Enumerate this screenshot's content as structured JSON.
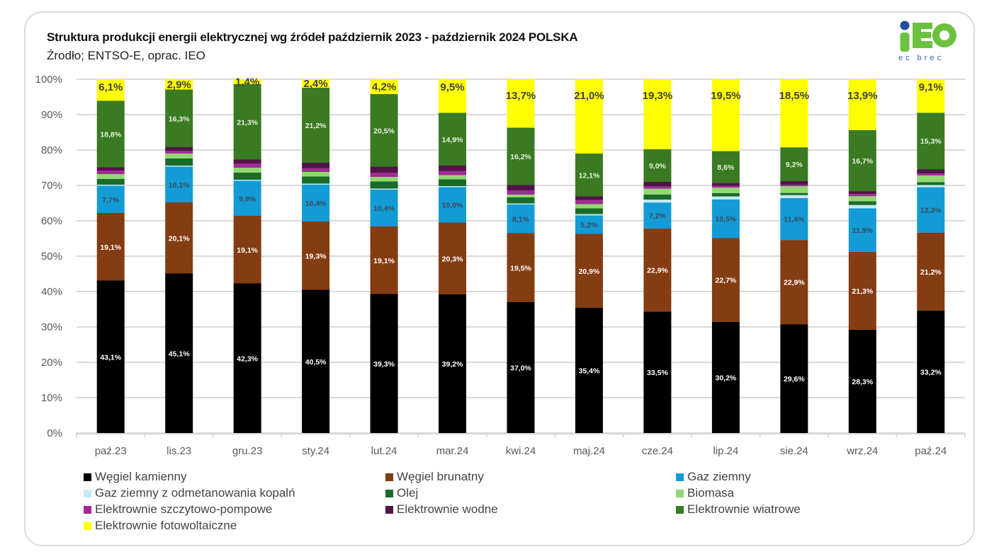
{
  "header": {
    "title": "Struktura produkcji energii elektrycznej wg źródeł październik 2023 - październik 2024 POLSKA",
    "subtitle": "Źrodło; ENTSO-E, oprac. IEO",
    "logo_main": "IEO",
    "logo_sub": "ec brec"
  },
  "chart_data": {
    "type": "bar",
    "stacked": "percent",
    "title": "Struktura produkcji energii elektrycznej wg źródeł październik 2023 - październik 2024 POLSKA",
    "subtitle": "Źrodło; ENTSO-E, oprac. IEO",
    "xlabel": "",
    "ylabel": "",
    "ylim": [
      0,
      100
    ],
    "yticks": [
      "0%",
      "10%",
      "20%",
      "30%",
      "40%",
      "50%",
      "60%",
      "70%",
      "80%",
      "90%",
      "100%"
    ],
    "grid": true,
    "legend_position": "bottom",
    "categories": [
      "paź.23",
      "lis.23",
      "gru.23",
      "sty.24",
      "lut.24",
      "mar.24",
      "kwi.24",
      "maj.24",
      "cze.24",
      "lip.24",
      "sie.24",
      "wrz.24",
      "paź.24"
    ],
    "series": [
      {
        "name": "Węgiel kamienny",
        "color": "#000000",
        "label_color": "#ffffff",
        "labeled": true,
        "values": [
          43.1,
          45.1,
          42.3,
          40.5,
          39.3,
          39.2,
          37.0,
          35.4,
          33.5,
          30.2,
          29.6,
          28.3,
          33.2
        ]
      },
      {
        "name": "Węgiel brunatny",
        "color": "#843c12",
        "label_color": "#ffffff",
        "labeled": true,
        "values": [
          19.1,
          20.1,
          19.1,
          19.3,
          19.1,
          20.3,
          19.5,
          20.9,
          22.9,
          22.7,
          22.9,
          21.3,
          21.2
        ]
      },
      {
        "name": "Gaz ziemny",
        "color": "#139bd5",
        "label_color": "#3a4a5a",
        "labeled": true,
        "values": [
          7.7,
          10.1,
          9.9,
          10.4,
          10.4,
          10.0,
          8.1,
          5.2,
          7.2,
          10.5,
          11.4,
          11.9,
          12.3
        ]
      },
      {
        "name": "Gaz ziemny z odmetanowania kopalń",
        "color": "#c5e8f7",
        "labeled": false,
        "values": [
          0.3,
          0.3,
          0.3,
          0.3,
          0.3,
          0.3,
          0.3,
          0.4,
          0.8,
          0.8,
          0.8,
          0.9,
          0.6
        ]
      },
      {
        "name": "Olej",
        "color": "#1a6b27",
        "labeled": false,
        "values": [
          1.6,
          2.0,
          2.0,
          2.0,
          2.0,
          1.9,
          1.7,
          1.6,
          1.4,
          0.9,
          0.6,
          1.0,
          0.8
        ]
      },
      {
        "name": "Biomasa",
        "color": "#92d774",
        "labeled": false,
        "values": [
          1.4,
          1.4,
          1.4,
          1.3,
          1.3,
          1.2,
          0.8,
          1.2,
          1.6,
          1.5,
          1.8,
          1.4,
          1.8
        ]
      },
      {
        "name": "Elektrownie szczytowo-pompowe",
        "color": "#a12b96",
        "labeled": false,
        "values": [
          1.0,
          0.8,
          1.2,
          1.1,
          1.2,
          1.2,
          1.2,
          1.2,
          0.6,
          0.5,
          0.4,
          0.6,
          0.5
        ]
      },
      {
        "name": "Elektrownie wodne",
        "color": "#4f1547",
        "labeled": false,
        "values": [
          0.9,
          1.0,
          1.1,
          1.5,
          1.7,
          1.5,
          1.5,
          1.0,
          1.3,
          0.8,
          1.0,
          0.8,
          1.2
        ]
      },
      {
        "name": "Elektrownie wiatrowe",
        "color": "#3a7a22",
        "label_color": "#e8f0e0",
        "labeled": true,
        "values": [
          18.8,
          16.3,
          21.3,
          21.2,
          20.5,
          14.9,
          16.2,
          12.1,
          9.0,
          8.6,
          9.2,
          16.7,
          15.3
        ]
      },
      {
        "name": "Elektrownie fotowoltaiczne",
        "color": "#ffff00",
        "label_color": "#404040",
        "labeled": true,
        "values": [
          6.1,
          2.9,
          1.4,
          2.4,
          4.2,
          9.5,
          13.7,
          21.0,
          19.3,
          19.5,
          18.5,
          13.9,
          9.1
        ]
      }
    ],
    "labels": {
      "Węgiel kamienny": [
        "43,1%",
        "45,1%",
        "42,3%",
        "40,5%",
        "39,3%",
        "39,2%",
        "37,0%",
        "35,4%",
        "33,5%",
        "30,2%",
        "29,6%",
        "28,3%",
        "33,2%"
      ],
      "Węgiel brunatny": [
        "19,1%",
        "20,1%",
        "19,1%",
        "19,3%",
        "19,1%",
        "20,3%",
        "19,5%",
        "20,9%",
        "22,9%",
        "22,7%",
        "22,9%",
        "21,3%",
        "21,2%"
      ],
      "Gaz ziemny": [
        "7,7%",
        "10,1%",
        "9,9%",
        "10,4%",
        "10,4%",
        "10,0%",
        "8,1%",
        "5,2%",
        "7,2%",
        "10,5%",
        "11,4%",
        "11,9%",
        "12,3%"
      ],
      "Elektrownie wiatrowe": [
        "18,8%",
        "16,3%",
        "21,3%",
        "21,2%",
        "20,5%",
        "14,9%",
        "16,2%",
        "12,1%",
        "9,0%",
        "8,6%",
        "9,2%",
        "16,7%",
        "15,3%"
      ],
      "Elektrownie fotowoltaiczne": [
        "6,1%",
        "2,9%",
        "1,4%",
        "2,4%",
        "4,2%",
        "9,5%",
        "13,7%",
        "21,0%",
        "19,3%",
        "19,5%",
        "18,5%",
        "13,9%",
        "9,1%"
      ]
    }
  },
  "legend": {
    "items": [
      {
        "label": "Węgiel kamienny",
        "color": "#000000"
      },
      {
        "label": "Węgiel brunatny",
        "color": "#843c12"
      },
      {
        "label": "Gaz ziemny",
        "color": "#139bd5"
      },
      {
        "label": "Gaz ziemny z odmetanowania kopalń",
        "color": "#c5e8f7"
      },
      {
        "label": "Olej",
        "color": "#1a6b27"
      },
      {
        "label": "Biomasa",
        "color": "#92d774"
      },
      {
        "label": "Elektrownie szczytowo-pompowe",
        "color": "#a12b96"
      },
      {
        "label": "Elektrownie wodne",
        "color": "#4f1547"
      },
      {
        "label": "Elektrownie wiatrowe",
        "color": "#3a7a22"
      },
      {
        "label": "Elektrownie fotowoltaiczne",
        "color": "#ffff00"
      }
    ]
  }
}
